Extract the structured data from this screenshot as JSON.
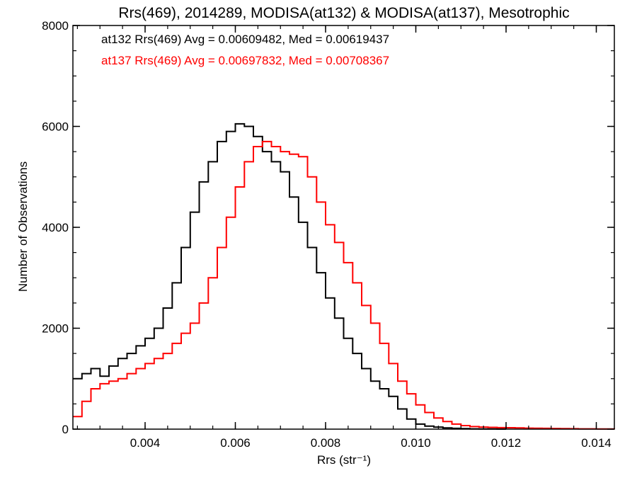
{
  "chart_data": {
    "type": "line",
    "title": "Rrs(469), 2014289, MODISA(at132) & MODISA(at137), Mesotrophic",
    "xlabel": "Rrs (str⁻¹)",
    "ylabel": "Number of Observations",
    "xlim": [
      0.0024,
      0.0144
    ],
    "ylim": [
      0,
      8000
    ],
    "x_ticks": [
      0.004,
      0.006,
      0.008,
      0.01,
      0.012,
      0.014
    ],
    "x_tick_labels": [
      "0.004",
      "0.006",
      "0.008",
      "0.010",
      "0.012",
      "0.014"
    ],
    "y_ticks": [
      0,
      2000,
      4000,
      6000,
      8000
    ],
    "y_tick_labels": [
      "0",
      "2000",
      "4000",
      "6000",
      "8000"
    ],
    "annotations": [
      {
        "text": "at132 Rrs(469) Avg = 0.00609482, Med = 0.00619437",
        "color": "#000000"
      },
      {
        "text": "at137 Rrs(469) Avg = 0.00697832, Med = 0.00708367",
        "color": "#ff0000"
      }
    ],
    "series": [
      {
        "color": "#000000",
        "x": [
          0.0024,
          0.0026,
          0.0028,
          0.003,
          0.0032,
          0.0034,
          0.0036,
          0.0038,
          0.004,
          0.0042,
          0.0044,
          0.0046,
          0.0048,
          0.005,
          0.0052,
          0.0054,
          0.0056,
          0.0058,
          0.006,
          0.0062,
          0.0064,
          0.0066,
          0.0068,
          0.007,
          0.0072,
          0.0074,
          0.0076,
          0.0078,
          0.008,
          0.0082,
          0.0084,
          0.0086,
          0.0088,
          0.009,
          0.0092,
          0.0094,
          0.0096,
          0.0098,
          0.01,
          0.0102,
          0.0104,
          0.0106,
          0.0108,
          0.011,
          0.0112,
          0.0114,
          0.0116,
          0.0118,
          0.012
        ],
        "y": [
          1000,
          1100,
          1200,
          1050,
          1250,
          1400,
          1500,
          1650,
          1800,
          2000,
          2400,
          2900,
          3600,
          4300,
          4900,
          5300,
          5700,
          5900,
          6050,
          6000,
          5800,
          5500,
          5300,
          5100,
          4600,
          4100,
          3600,
          3100,
          2600,
          2200,
          1800,
          1500,
          1200,
          950,
          800,
          650,
          400,
          200,
          100,
          60,
          40,
          25,
          15,
          10,
          6,
          4,
          3,
          2,
          1
        ]
      },
      {
        "color": "#ff0000",
        "x": [
          0.0024,
          0.0026,
          0.0028,
          0.003,
          0.0032,
          0.0034,
          0.0036,
          0.0038,
          0.004,
          0.0042,
          0.0044,
          0.0046,
          0.0048,
          0.005,
          0.0052,
          0.0054,
          0.0056,
          0.0058,
          0.006,
          0.0062,
          0.0064,
          0.0066,
          0.0068,
          0.007,
          0.0072,
          0.0074,
          0.0076,
          0.0078,
          0.008,
          0.0082,
          0.0084,
          0.0086,
          0.0088,
          0.009,
          0.0092,
          0.0094,
          0.0096,
          0.0098,
          0.01,
          0.0102,
          0.0104,
          0.0106,
          0.0108,
          0.011,
          0.0112,
          0.0114,
          0.0116,
          0.0118,
          0.012,
          0.0122,
          0.0124,
          0.0126,
          0.0128,
          0.013,
          0.0132,
          0.0134,
          0.0136,
          0.0138,
          0.014,
          0.0142,
          0.0144
        ],
        "y": [
          250,
          550,
          800,
          900,
          950,
          1000,
          1100,
          1200,
          1300,
          1400,
          1500,
          1700,
          1900,
          2100,
          2500,
          3000,
          3600,
          4200,
          4800,
          5300,
          5600,
          5700,
          5600,
          5500,
          5450,
          5400,
          5000,
          4500,
          4050,
          3700,
          3300,
          2900,
          2450,
          2100,
          1700,
          1300,
          950,
          700,
          480,
          330,
          220,
          150,
          100,
          70,
          50,
          40,
          35,
          30,
          28,
          25,
          20,
          18,
          15,
          12,
          10,
          8,
          6,
          5,
          4,
          3,
          2
        ]
      }
    ],
    "legend": "none",
    "grid": false
  }
}
